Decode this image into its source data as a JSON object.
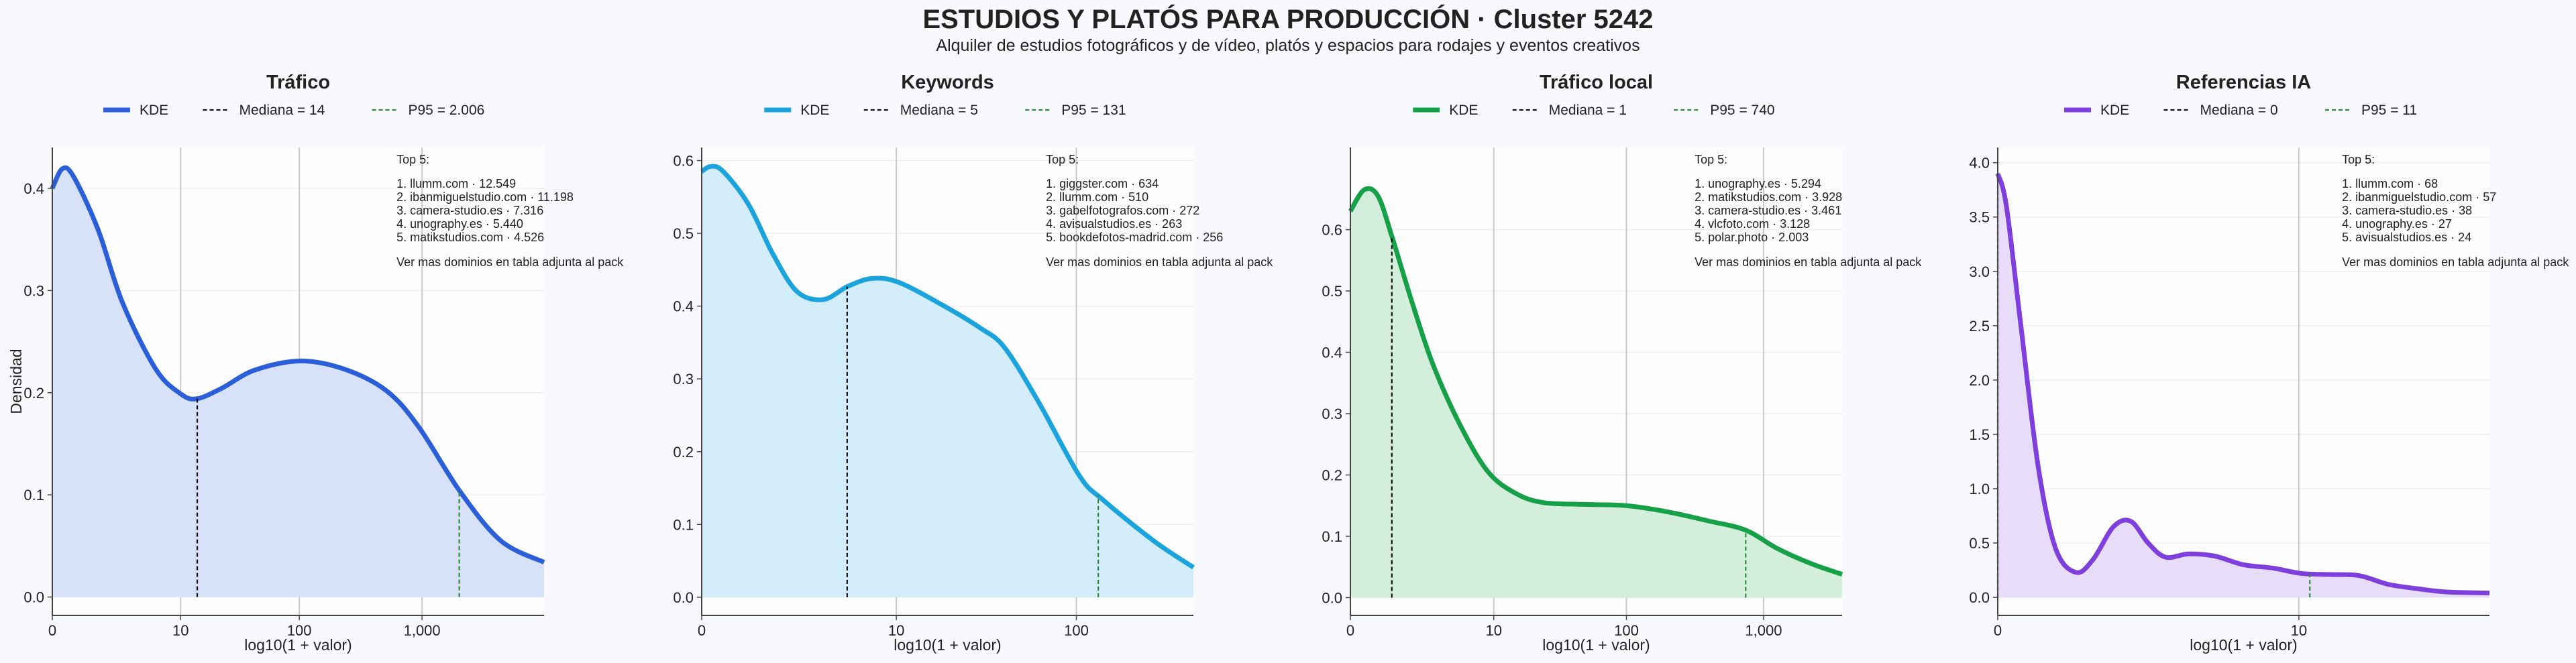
{
  "title": "ESTUDIOS Y PLATÓS PARA PRODUCCIÓN · Cluster 5242",
  "subtitle": "Alquiler de estudios fotográficos y de vídeo, platós y espacios para rodajes y eventos creativos",
  "chart_data": [
    {
      "type": "area",
      "title": "Tráfico",
      "x_label": "log10(1 + valor)",
      "y_label": "Densidad",
      "series": [
        {
          "name": "KDE",
          "color": "#2b5fd9",
          "fill_color": "#d7e1f8",
          "x": [
            0,
            0.08,
            0.17,
            0.37,
            0.57,
            0.84,
            1.04,
            1.17,
            1.37,
            1.64,
            2.01,
            2.37,
            2.71,
            2.97,
            3.31,
            3.64,
            3.99
          ],
          "values": [
            0.4,
            0.419,
            0.412,
            0.36,
            0.288,
            0.223,
            0.199,
            0.194,
            0.204,
            0.222,
            0.231,
            0.223,
            0.202,
            0.167,
            0.103,
            0.055,
            0.034
          ]
        }
      ],
      "reference_lines": [
        {
          "name": "Mediana = 14",
          "color": "#111111",
          "x": 1.176
        },
        {
          "name": "P95 = 2.006",
          "color": "#2e8b3e",
          "x": 3.302
        }
      ],
      "xlim": [
        0,
        3.99
      ],
      "ylim": [
        -0.018,
        0.44
      ],
      "xticks": [
        0,
        {
          "value": 1.041,
          "label": "10"
        },
        {
          "value": 2.004,
          "label": "100"
        },
        {
          "value": 3.0,
          "label": "1,000"
        }
      ],
      "yticks": [
        {
          "value": 0,
          "label": "0.0"
        },
        0.1,
        0.2,
        0.3,
        0.4
      ],
      "grid": true,
      "annotation": {
        "title": "Top 5:",
        "items": [
          "1. llumm.com · 12.549",
          "2. ibanmiguelstudio.com · 11.198",
          "3. camera-studio.es · 7.316",
          "4. unography.es · 5.440",
          "5. matikstudios.com · 4.526"
        ],
        "note": "Ver mas dominios en tabla adjunta al pack"
      }
    },
    {
      "type": "area",
      "title": "Keywords",
      "x_label": "log10(1 + valor)",
      "series": [
        {
          "name": "KDE",
          "color": "#1aa3dc",
          "fill_color": "#d3eefa",
          "x": [
            0,
            0.05,
            0.115,
            0.25,
            0.38,
            0.51,
            0.65,
            0.78,
            0.91,
            1.05,
            1.27,
            1.49,
            1.62,
            1.8,
            2.02,
            2.15,
            2.42,
            2.63
          ],
          "values": [
            0.585,
            0.592,
            0.585,
            0.54,
            0.472,
            0.42,
            0.409,
            0.427,
            0.438,
            0.433,
            0.404,
            0.37,
            0.343,
            0.269,
            0.167,
            0.133,
            0.077,
            0.041
          ]
        }
      ],
      "reference_lines": [
        {
          "name": "Mediana = 5",
          "color": "#111111",
          "x": 0.778
        },
        {
          "name": "P95 = 131",
          "color": "#2e8b3e",
          "x": 2.121
        }
      ],
      "xlim": [
        0,
        2.63
      ],
      "ylim": [
        -0.025,
        0.618
      ],
      "xticks": [
        0,
        {
          "value": 1.041,
          "label": "10"
        },
        {
          "value": 2.004,
          "label": "100"
        }
      ],
      "yticks": [
        {
          "value": 0,
          "label": "0.0"
        },
        0.1,
        0.2,
        0.3,
        0.4,
        0.5,
        0.6
      ],
      "grid": true,
      "annotation": {
        "title": "Top 5:",
        "items": [
          "1. giggster.com · 634",
          "2. llumm.com · 510",
          "3. gabelfotografos.com · 272",
          "4. avisualstudios.es · 263",
          "5. bookdefotos-madrid.com · 256"
        ],
        "note": "Ver mas dominios en tabla adjunta al pack"
      }
    },
    {
      "type": "area",
      "title": "Tráfico local",
      "x_label": "log10(1 + valor)",
      "series": [
        {
          "name": "KDE",
          "color": "#16a048",
          "fill_color": "#d3efdc",
          "x": [
            0,
            0.1,
            0.2,
            0.3,
            0.45,
            0.6,
            0.8,
            1.0,
            1.2,
            1.4,
            1.7,
            2.0,
            2.3,
            2.6,
            2.87,
            3.1,
            3.35,
            3.57
          ],
          "values": [
            0.63,
            0.665,
            0.655,
            0.59,
            0.48,
            0.38,
            0.28,
            0.205,
            0.17,
            0.155,
            0.152,
            0.15,
            0.14,
            0.125,
            0.11,
            0.08,
            0.055,
            0.038
          ]
        }
      ],
      "reference_lines": [
        {
          "name": "Mediana = 1",
          "color": "#111111",
          "x": 0.301
        },
        {
          "name": "P95 = 740",
          "color": "#2e8b3e",
          "x": 2.87
        }
      ],
      "xlim": [
        0,
        3.57
      ],
      "ylim": [
        -0.029,
        0.734
      ],
      "xticks": [
        0,
        {
          "value": 1.041,
          "label": "10"
        },
        {
          "value": 2.004,
          "label": "100"
        },
        {
          "value": 3.0,
          "label": "1,000"
        }
      ],
      "yticks": [
        {
          "value": 0,
          "label": "0.0"
        },
        0.1,
        0.2,
        0.3,
        0.4,
        0.5,
        0.6
      ],
      "grid": true,
      "annotation": {
        "title": "Top 5:",
        "items": [
          "1. unography.es · 5.294",
          "2. matikstudios.com · 3.928",
          "3. camera-studio.es · 3.461",
          "4. vlcfoto.com · 3.128",
          "5. polar.photo · 2.003"
        ],
        "note": "Ver mas dominios en tabla adjunta al pack"
      }
    },
    {
      "type": "area",
      "title": "Referencias IA",
      "x_label": "log10(1 + valor)",
      "series": [
        {
          "name": "KDE",
          "color": "#7e3fdc",
          "fill_color": "#e7ddf8",
          "x": [
            0,
            0.03,
            0.08,
            0.14,
            0.2,
            0.27,
            0.33,
            0.4,
            0.46,
            0.52,
            0.58,
            0.66,
            0.75,
            0.85,
            0.95,
            1.05,
            1.15,
            1.25,
            1.35,
            1.45,
            1.55,
            1.7
          ],
          "values": [
            3.9,
            3.6,
            2.5,
            1.2,
            0.45,
            0.23,
            0.35,
            0.65,
            0.7,
            0.5,
            0.37,
            0.4,
            0.38,
            0.3,
            0.27,
            0.22,
            0.21,
            0.2,
            0.12,
            0.08,
            0.05,
            0.04
          ]
        }
      ],
      "reference_lines": [
        {
          "name": "Mediana = 0",
          "color": "#111111",
          "x": 0
        },
        {
          "name": "P95 = 11",
          "color": "#2e8b3e",
          "x": 1.079
        }
      ],
      "xlim": [
        0,
        1.7
      ],
      "ylim": [
        -0.166,
        4.14
      ],
      "xticks": [
        0,
        {
          "value": 1.041,
          "label": "10"
        }
      ],
      "yticks": [
        {
          "value": 0,
          "label": "0.0"
        },
        0.5,
        {
          "value": 1,
          "label": "1.0"
        },
        1.5,
        {
          "value": 2,
          "label": "2.0"
        },
        2.5,
        {
          "value": 3,
          "label": "3.0"
        },
        3.5,
        {
          "value": 4,
          "label": "4.0"
        }
      ],
      "grid": true,
      "annotation": {
        "title": "Top 5:",
        "items": [
          "1. llumm.com · 68",
          "2. ibanmiguelstudio.com · 57",
          "3. camera-studio.es · 38",
          "4. unography.es · 27",
          "5. avisualstudios.es · 24"
        ],
        "note": "Ver mas dominios en tabla adjunta al pack"
      }
    }
  ]
}
